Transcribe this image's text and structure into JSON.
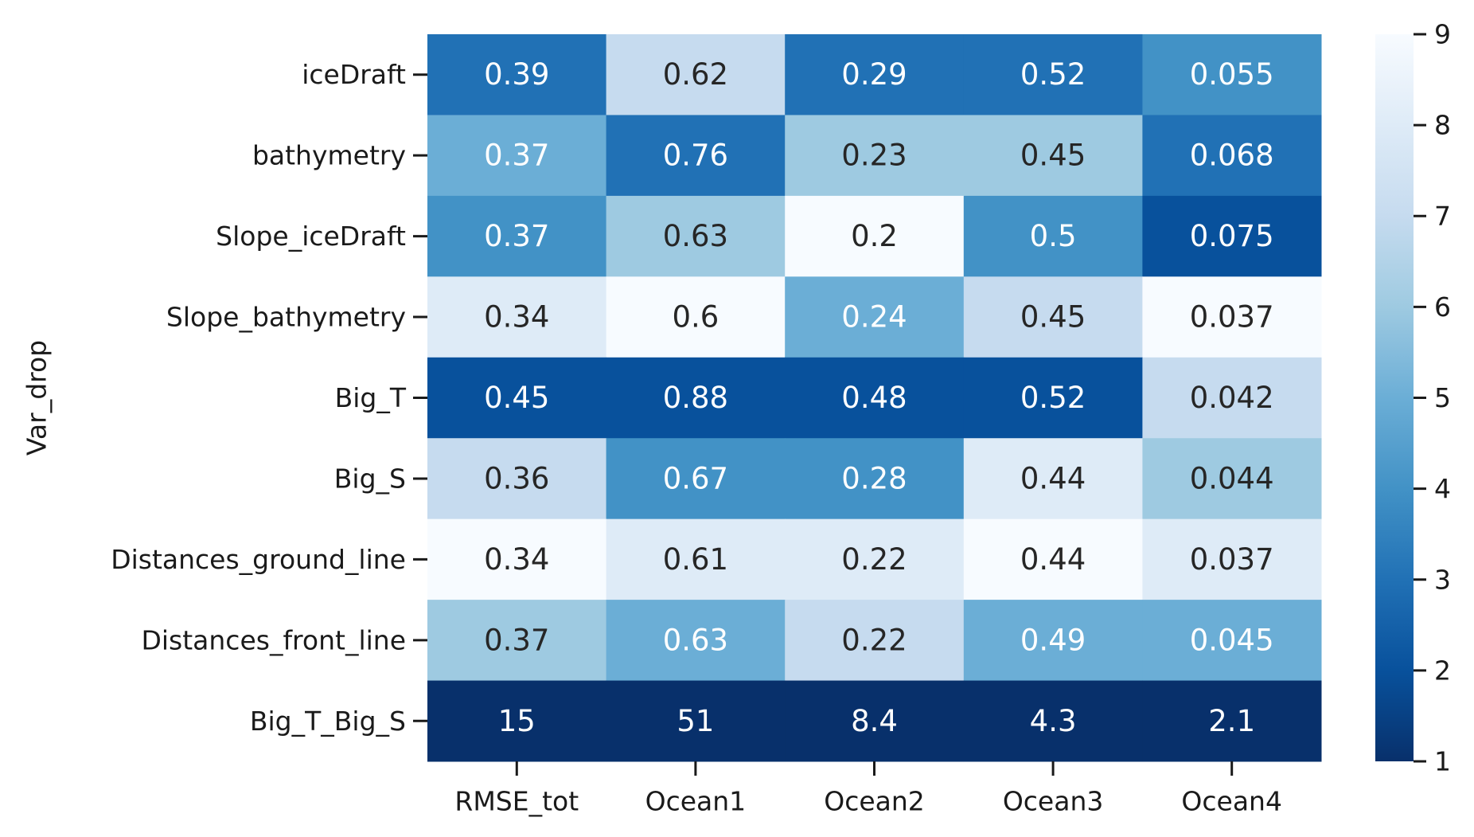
{
  "chart_data": {
    "type": "heatmap",
    "title": "",
    "xlabel": "",
    "ylabel": "Var_drop",
    "x_categories": [
      "RMSE_tot",
      "Ocean1",
      "Ocean2",
      "Ocean3",
      "Ocean4"
    ],
    "y_categories": [
      "iceDraft",
      "bathymetry",
      "Slope_iceDraft",
      "Slope_bathymetry",
      "Big_T",
      "Big_S",
      "Distances_ground_line",
      "Distances_front_line",
      "Big_T_Big_S"
    ],
    "cell_labels": [
      [
        "0.39",
        "0.62",
        "0.29",
        "0.52",
        "0.055"
      ],
      [
        "0.37",
        "0.76",
        "0.23",
        "0.45",
        "0.068"
      ],
      [
        "0.37",
        "0.63",
        "0.2",
        "0.5",
        "0.075"
      ],
      [
        "0.34",
        "0.6",
        "0.24",
        "0.45",
        "0.037"
      ],
      [
        "0.45",
        "0.88",
        "0.48",
        "0.52",
        "0.042"
      ],
      [
        "0.36",
        "0.67",
        "0.28",
        "0.44",
        "0.044"
      ],
      [
        "0.34",
        "0.61",
        "0.22",
        "0.44",
        "0.037"
      ],
      [
        "0.37",
        "0.63",
        "0.22",
        "0.49",
        "0.045"
      ],
      [
        "15",
        "51",
        "8.4",
        "4.3",
        "2.1"
      ]
    ],
    "color_values": [
      [
        3.0,
        7.0,
        3.0,
        3.0,
        4.0
      ],
      [
        5.0,
        3.0,
        6.0,
        6.0,
        3.0
      ],
      [
        4.0,
        6.0,
        9.0,
        4.0,
        2.0
      ],
      [
        8.0,
        9.0,
        5.0,
        7.0,
        9.0
      ],
      [
        2.0,
        2.0,
        2.0,
        2.0,
        7.0
      ],
      [
        7.0,
        4.0,
        4.0,
        8.0,
        6.0
      ],
      [
        9.0,
        8.0,
        8.0,
        9.0,
        8.0
      ],
      [
        6.0,
        5.0,
        7.0,
        5.0,
        5.0
      ],
      [
        1.0,
        1.0,
        1.0,
        1.0,
        1.0
      ]
    ],
    "colorbar": {
      "min": 1,
      "max": 9,
      "ticks": [
        1,
        2,
        3,
        4,
        5,
        6,
        7,
        8,
        9
      ],
      "colormap": "Blues_r"
    },
    "colors": {
      "light": "#f7fbff",
      "dark": "#08306b",
      "text_dark": "#262626",
      "text_light": "#ffffff"
    }
  }
}
